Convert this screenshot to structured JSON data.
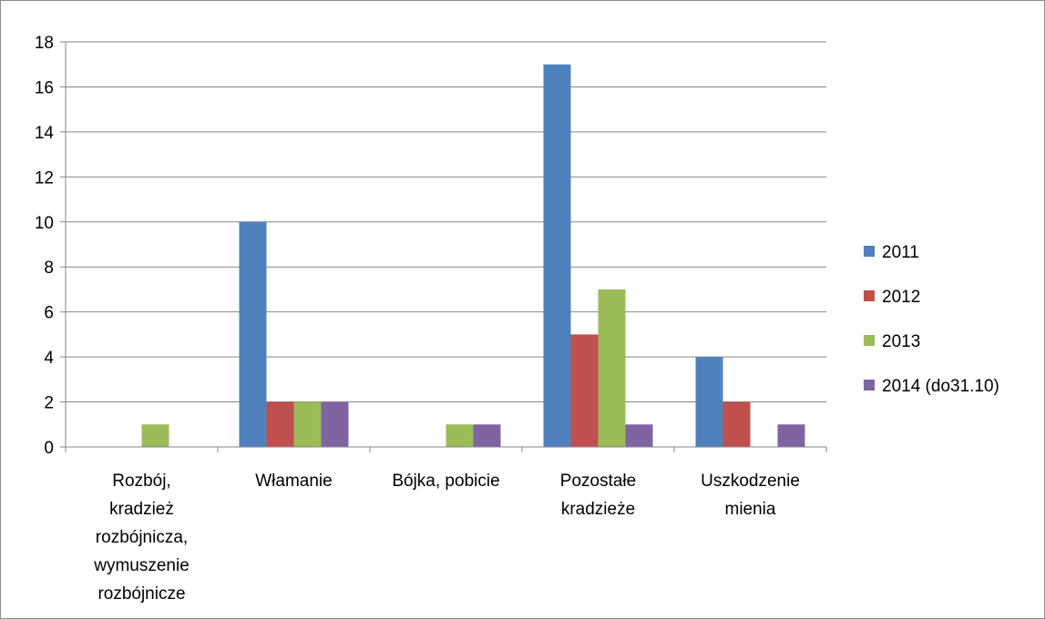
{
  "chart_data": {
    "type": "bar",
    "title": "",
    "xlabel": "",
    "ylabel": "",
    "ylim": [
      0,
      18
    ],
    "yticks": [
      0,
      2,
      4,
      6,
      8,
      10,
      12,
      14,
      16,
      18
    ],
    "grid": true,
    "legend_position": "right",
    "categories": [
      [
        "Rozbój,",
        "kradzież",
        "rozbójnicza,",
        "wymuszenie",
        "rozbójnicze"
      ],
      [
        "Włamanie"
      ],
      [
        "Bójka, pobicie"
      ],
      [
        "Pozostałe",
        "kradzieże"
      ],
      [
        "Uszkodzenie",
        "mienia"
      ]
    ],
    "series": [
      {
        "name": "2011",
        "color": "#4F81BD",
        "values": [
          0,
          10,
          0,
          17,
          4
        ]
      },
      {
        "name": "2012",
        "color": "#C0504D",
        "values": [
          0,
          2,
          0,
          5,
          2
        ]
      },
      {
        "name": "2013",
        "color": "#9BBB59",
        "values": [
          1,
          2,
          1,
          7,
          0
        ]
      },
      {
        "name": "2014 (do31.10)",
        "color": "#8064A2",
        "values": [
          0,
          2,
          1,
          1,
          1
        ]
      }
    ]
  }
}
